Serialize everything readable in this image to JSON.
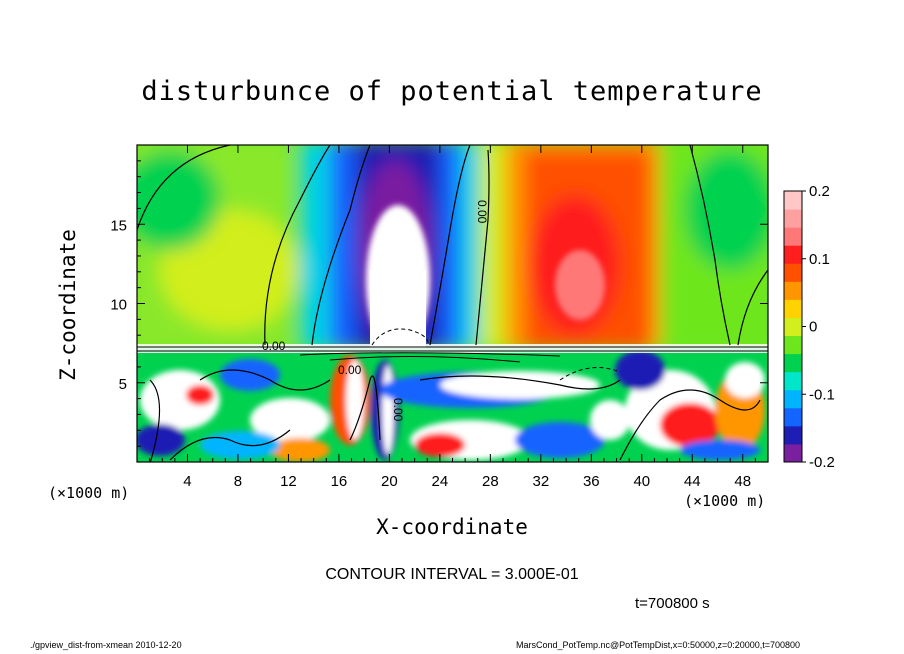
{
  "chart_data": {
    "type": "heatmap",
    "title": "disturbunce of potential temperature",
    "xlabel": "X-coordinate",
    "ylabel": "Z-coordinate",
    "x_unit": "(×1000 m)",
    "x_ticks": [
      4,
      8,
      12,
      16,
      20,
      24,
      28,
      32,
      36,
      40,
      44,
      48
    ],
    "y_ticks": [
      5,
      10,
      15
    ],
    "xlim": [
      0,
      50
    ],
    "ylim": [
      0,
      20
    ],
    "colorbar": {
      "min": -0.2,
      "max": 0.2,
      "labels": [
        "0.2",
        "0.1",
        "0",
        "-0.1",
        "-0.2"
      ],
      "label_values": [
        0.2,
        0.1,
        0,
        -0.1,
        -0.2
      ],
      "colors": [
        "#7a1fa0",
        "#1e1eb4",
        "#1464ff",
        "#00b4ff",
        "#00e6c8",
        "#00d250",
        "#6ee61e",
        "#d2ee1e",
        "#ffd200",
        "#ff9600",
        "#ff5000",
        "#ff1e1e",
        "#ff7878",
        "#ffa0a0",
        "#ffc8c8"
      ]
    },
    "contour_labels": [
      "0.00",
      "0.00",
      "0.00",
      "0.00"
    ],
    "grid": false
  },
  "contour_interval": "CONTOUR INTERVAL = 3.000E-01",
  "time_label": "t=700800 s",
  "footer_left": "./gpview_dist-from-xmean  2010-12-20",
  "footer_right": "MarsCond_PotTemp.nc@PotTempDist,x=0:50000,z=0:20000,t=700800"
}
